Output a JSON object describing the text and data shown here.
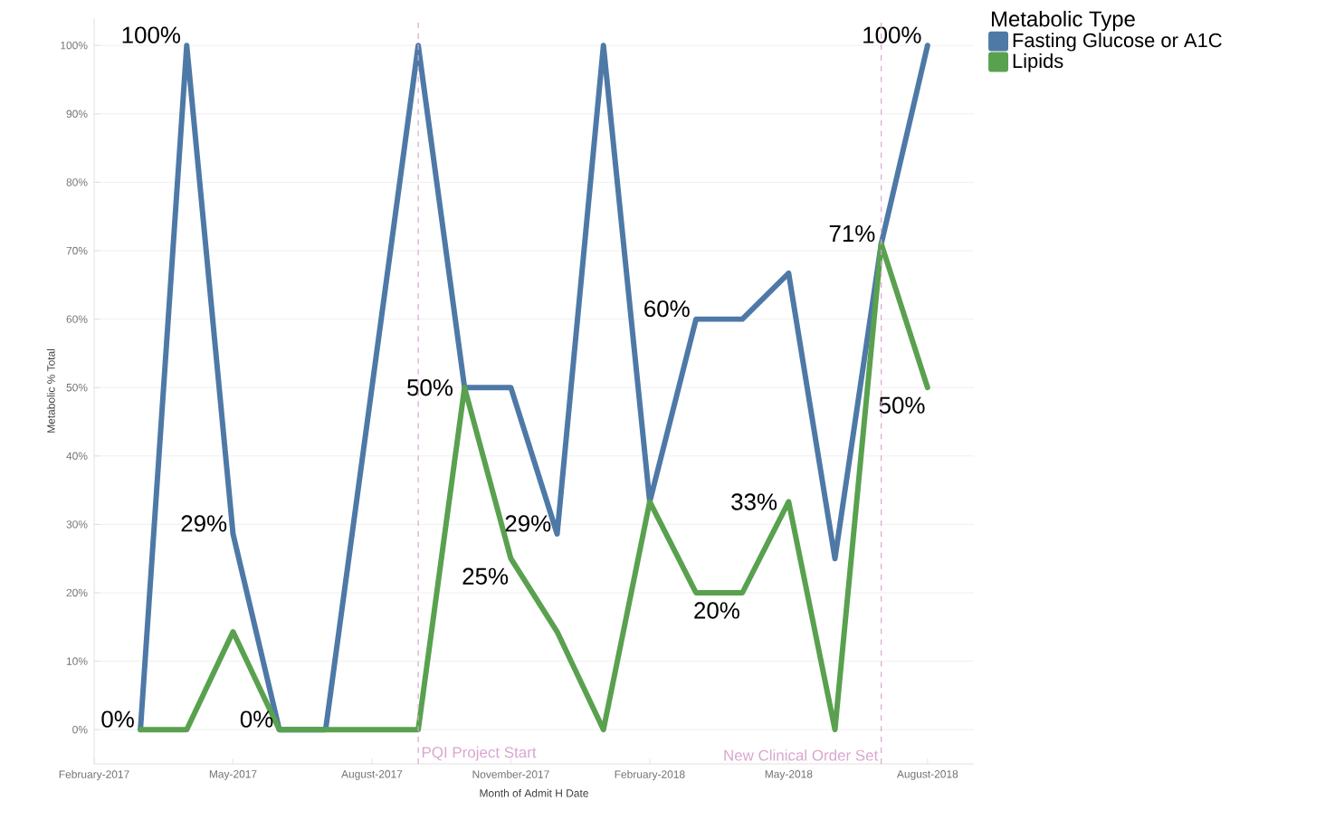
{
  "chart_data": {
    "type": "line",
    "xlabel": "Month of Admit  H Date",
    "ylabel": "Metabolic % Total",
    "legend_title": "Metabolic Type",
    "x": [
      "2017-03",
      "2017-04",
      "2017-05",
      "2017-06",
      "2017-07",
      "2017-09",
      "2017-10",
      "2017-11",
      "2017-12",
      "2018-01",
      "2018-02",
      "2018-03",
      "2018-04",
      "2018-05",
      "2018-06",
      "2018-07",
      "2018-08"
    ],
    "series": [
      {
        "name": "Fasting Glucose or A1C",
        "color": "#4e79a7",
        "values": [
          0,
          100,
          28.6,
          0,
          0,
          100,
          50,
          50,
          28.6,
          100,
          33.3,
          60,
          60,
          66.7,
          25,
          71,
          100
        ],
        "value_labels": [
          "0%",
          "100%",
          "29%",
          "0%",
          null,
          null,
          null,
          null,
          "29%",
          null,
          null,
          "60%",
          null,
          null,
          null,
          "71%",
          "100%"
        ]
      },
      {
        "name": "Lipids",
        "color": "#59a14f",
        "values": [
          0,
          0,
          14.3,
          0,
          0,
          0,
          50,
          25,
          14.3,
          0,
          33.3,
          20,
          20,
          33.3,
          0,
          71,
          50
        ],
        "value_labels": [
          null,
          null,
          null,
          null,
          null,
          null,
          "50%",
          "25%",
          null,
          null,
          null,
          null,
          "20%",
          "33%",
          null,
          null,
          "50%"
        ]
      }
    ],
    "xlim": [
      "2017-02",
      "2018-09"
    ],
    "xticks": [
      {
        "value": "2017-02",
        "label": "February-2017"
      },
      {
        "value": "2017-05",
        "label": "May-2017"
      },
      {
        "value": "2017-08",
        "label": "August-2017"
      },
      {
        "value": "2017-11",
        "label": "November-2017"
      },
      {
        "value": "2018-02",
        "label": "February-2018"
      },
      {
        "value": "2018-05",
        "label": "May-2018"
      },
      {
        "value": "2018-08",
        "label": "August-2018"
      }
    ],
    "ylim": [
      -5,
      104
    ],
    "yticks": [
      {
        "value": 0,
        "label": "0%"
      },
      {
        "value": 10,
        "label": "10%"
      },
      {
        "value": 20,
        "label": "20%"
      },
      {
        "value": 30,
        "label": "30%"
      },
      {
        "value": 40,
        "label": "40%"
      },
      {
        "value": 50,
        "label": "50%"
      },
      {
        "value": 60,
        "label": "60%"
      },
      {
        "value": 70,
        "label": "70%"
      },
      {
        "value": 80,
        "label": "80%"
      },
      {
        "value": 90,
        "label": "90%"
      },
      {
        "value": 100,
        "label": "100%"
      }
    ],
    "ref_lines": [
      {
        "axis": "x",
        "value": "2017-09",
        "label": "PQI Project Start",
        "color": "#d8a6cf",
        "line_style": "dashed"
      },
      {
        "axis": "x",
        "value": "2018-07",
        "label": "New Clinical Order Set",
        "color": "#d8a6cf",
        "line_style": "dashed"
      }
    ],
    "grid": "y",
    "legend": "top right",
    "marker": "none",
    "line_style": "solid"
  }
}
